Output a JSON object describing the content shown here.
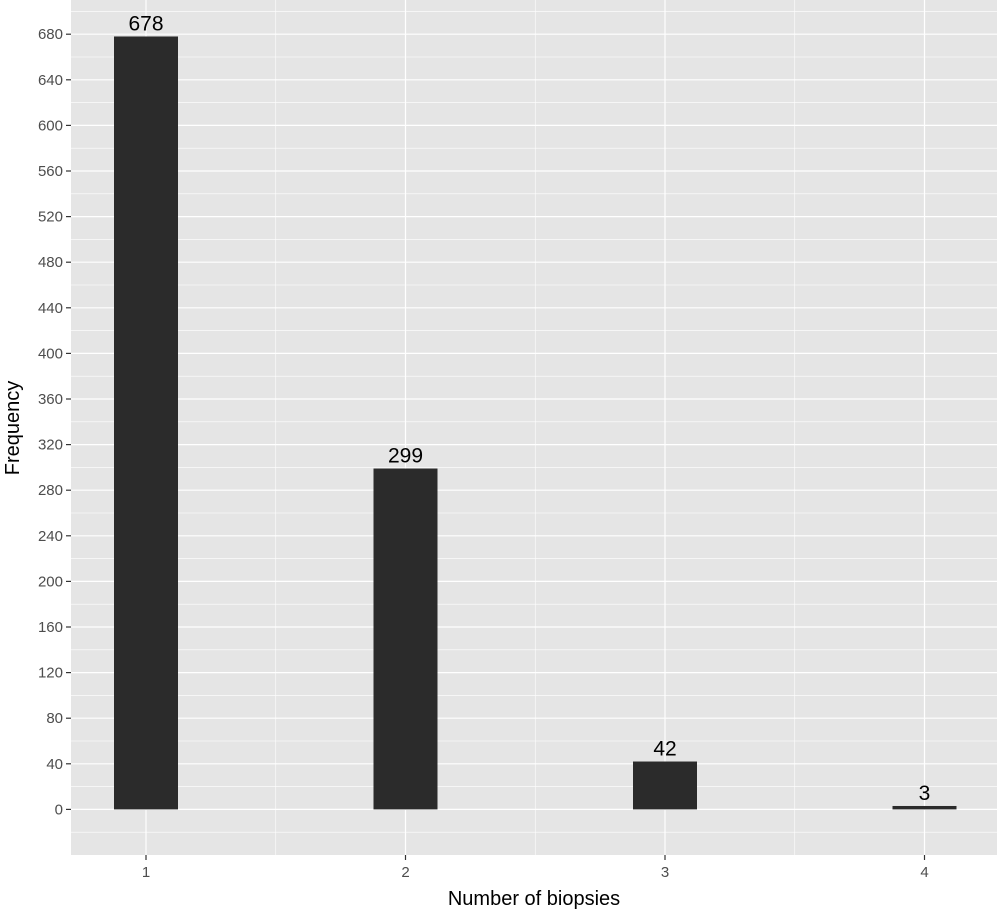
{
  "chart_data": {
    "type": "bar",
    "categories": [
      "1",
      "2",
      "3",
      "4"
    ],
    "values": [
      678,
      299,
      42,
      3
    ],
    "data_labels": [
      "678",
      "299",
      "42",
      "3"
    ],
    "xlabel": "Number of biopsies",
    "ylabel": "Frequency",
    "ylim": [
      -40,
      710
    ],
    "y_ticks": [
      0,
      40,
      80,
      120,
      160,
      200,
      240,
      280,
      320,
      360,
      400,
      440,
      480,
      520,
      560,
      600,
      640,
      680
    ],
    "grid": true,
    "legend": "none",
    "colors": {
      "panel_background": "#e5e5e5",
      "grid_line": "#ffffff",
      "bar_fill": "#2b2b2b"
    }
  }
}
